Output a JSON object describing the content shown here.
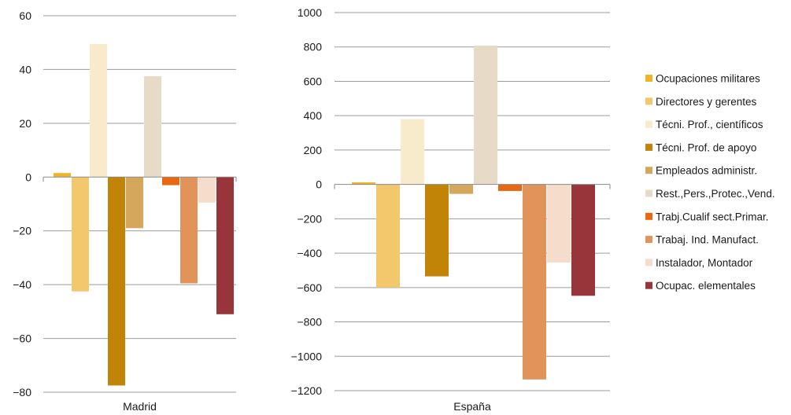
{
  "chart_data": [
    {
      "type": "bar",
      "categories": [
        "Madrid"
      ],
      "ylim": [
        -80,
        60
      ],
      "yticks": [
        60,
        40,
        20,
        0,
        -20,
        -40,
        -60,
        -80
      ],
      "tick_labels": [
        "60",
        "40",
        "20",
        "0",
        "−20",
        "−40",
        "−60",
        "−80"
      ],
      "grid": true,
      "series": [
        {
          "name": "Ocupaciones militares",
          "values": [
            1.5
          ]
        },
        {
          "name": "Directores y gerentes",
          "values": [
            -42.5
          ]
        },
        {
          "name": "Técni. Prof., científicos",
          "values": [
            49.5
          ]
        },
        {
          "name": "Técni. Prof. de apoyo",
          "values": [
            -77.5
          ]
        },
        {
          "name": "Empleados administr.",
          "values": [
            -19
          ]
        },
        {
          "name": "Rest.,Pers.,Protec.,Vend.",
          "values": [
            37.5
          ]
        },
        {
          "name": "Trabj.Cualif sect.Primar.",
          "values": [
            -3
          ]
        },
        {
          "name": "Trabaj. Ind. Manufact.",
          "values": [
            -39.5
          ]
        },
        {
          "name": "Instalador, Montador",
          "values": [
            -9.5
          ]
        },
        {
          "name": "Ocupac. elementales",
          "values": [
            -51
          ]
        }
      ]
    },
    {
      "type": "bar",
      "categories": [
        "España"
      ],
      "ylim": [
        -1200,
        1000
      ],
      "yticks": [
        1000,
        800,
        600,
        400,
        200,
        0,
        -200,
        -400,
        -600,
        -800,
        -1000,
        -1200
      ],
      "tick_labels": [
        "1000",
        "800",
        "600",
        "400",
        "200",
        "0",
        "−200",
        "−400",
        "−600",
        "−800",
        "−1000",
        "−1200"
      ],
      "grid": true,
      "series": [
        {
          "name": "Ocupaciones militares",
          "values": [
            12
          ]
        },
        {
          "name": "Directores y gerentes",
          "values": [
            -600
          ]
        },
        {
          "name": "Técni. Prof., científicos",
          "values": [
            380
          ]
        },
        {
          "name": "Técni. Prof. de apoyo",
          "values": [
            -535
          ]
        },
        {
          "name": "Empleados administr.",
          "values": [
            -55
          ]
        },
        {
          "name": "Rest.,Pers.,Protec.,Vend.",
          "values": [
            808
          ]
        },
        {
          "name": "Trabj.Cualif sect.Primar.",
          "values": [
            -38
          ]
        },
        {
          "name": "Trabaj. Ind. Manufact.",
          "values": [
            -1135
          ]
        },
        {
          "name": "Instalador, Montador",
          "values": [
            -455
          ]
        },
        {
          "name": "Ocupac. elementales",
          "values": [
            -648
          ]
        }
      ]
    }
  ],
  "legend": {
    "placement": "right",
    "items": [
      {
        "label": "Ocupaciones militares",
        "color": "#f0b428"
      },
      {
        "label": "Directores y gerentes",
        "color": "#f3c86c"
      },
      {
        "label": "Técni. Prof., científicos",
        "color": "#f8ebcc"
      },
      {
        "label": "Técni. Prof. de apoyo",
        "color": "#c18406"
      },
      {
        "label": "Empleados administr.",
        "color": "#d4a75c"
      },
      {
        "label": "Rest.,Pers.,Protec.,Vend.",
        "color": "#e7dac7"
      },
      {
        "label": "Trabj.Cualif sect.Primar.",
        "color": "#e9670e"
      },
      {
        "label": "Trabaj. Ind. Manufact.",
        "color": "#e2935a"
      },
      {
        "label": "Instalador, Montador",
        "color": "#f5dccb"
      },
      {
        "label": "Ocupac. elementales",
        "color": "#98353a"
      }
    ]
  }
}
